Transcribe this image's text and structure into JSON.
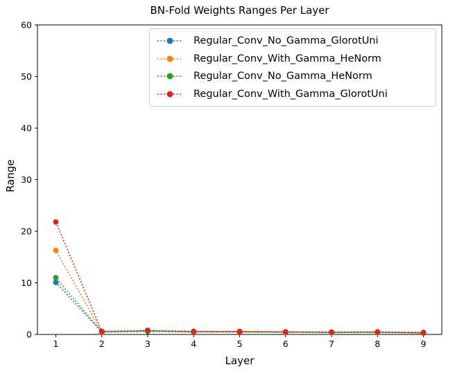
{
  "chart_data": {
    "type": "line",
    "title": "BN-Fold Weights Ranges Per Layer",
    "xlabel": "Layer",
    "ylabel": "Range",
    "line_style": "dotted",
    "marker": "circle",
    "grid": false,
    "legend_position": "upper center inside plot",
    "xlim": [
      0.6,
      9.4
    ],
    "ylim": [
      0,
      60
    ],
    "xticks": [
      1,
      2,
      3,
      4,
      5,
      6,
      7,
      8,
      9
    ],
    "yticks": [
      0,
      10,
      20,
      30,
      40,
      50,
      60
    ],
    "x": [
      1,
      2,
      3,
      4,
      5,
      6,
      7,
      8,
      9
    ],
    "series": [
      {
        "name": "Regular_Conv_No_Gamma_GlorotUni",
        "color": "#1f77b4",
        "values": [
          10.1,
          0.45,
          0.6,
          0.5,
          0.5,
          0.45,
          0.4,
          0.4,
          0.25
        ]
      },
      {
        "name": "Regular_Conv_With_Gamma_HeNorm",
        "color": "#ff7f0e",
        "values": [
          16.3,
          0.5,
          0.7,
          0.55,
          0.6,
          0.5,
          0.45,
          0.45,
          0.3
        ]
      },
      {
        "name": "Regular_Conv_No_Gamma_HeNorm",
        "color": "#2ca02c",
        "values": [
          11.0,
          0.55,
          0.65,
          0.5,
          0.5,
          0.45,
          0.4,
          0.45,
          0.4
        ]
      },
      {
        "name": "Regular_Conv_With_Gamma_GlorotUni",
        "color": "#d62728",
        "values": [
          21.8,
          0.6,
          0.8,
          0.6,
          0.55,
          0.5,
          0.45,
          0.5,
          0.35
        ]
      }
    ],
    "spine_color": "#000000",
    "background_color": "#ffffff",
    "legend_border_color": "#cccccc"
  }
}
